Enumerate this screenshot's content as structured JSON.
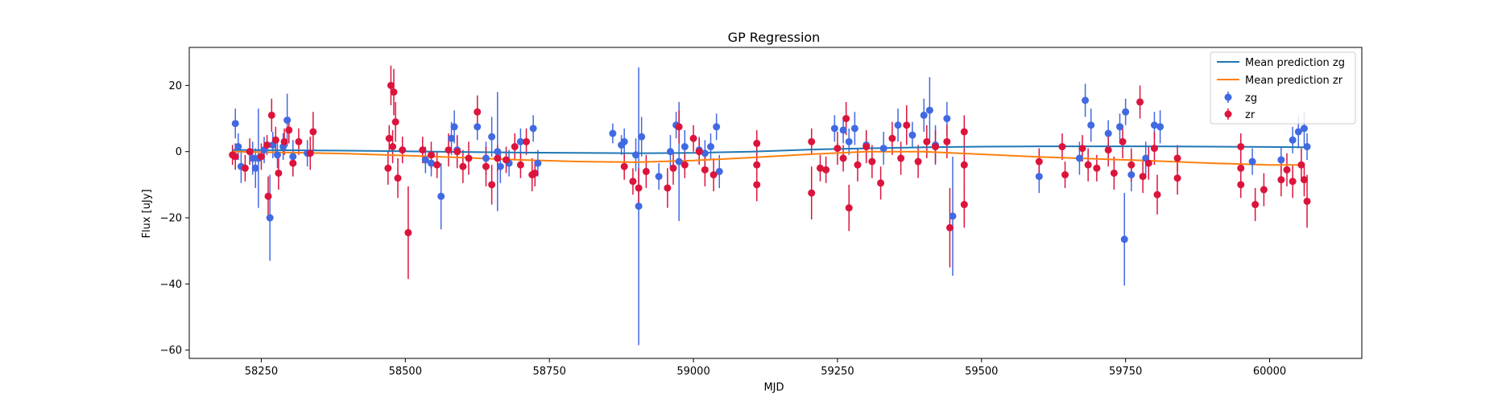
{
  "chart_data": {
    "type": "scatter",
    "title": "GP Regression",
    "xlabel": "MJD",
    "ylabel": "Flux [uJy]",
    "xlim": [
      58125,
      60160
    ],
    "ylim": [
      -62.5,
      31.5
    ],
    "xticks": [
      58250,
      58500,
      58750,
      59000,
      59250,
      59500,
      59750,
      60000
    ],
    "yticks": [
      -60,
      -40,
      -20,
      0,
      20
    ],
    "grid": false,
    "legend_position": "top-right",
    "lines": [
      {
        "name": "Mean prediction zg",
        "color": "#1f77b4",
        "x": [
          58200,
          58300,
          58400,
          58500,
          58600,
          58700,
          58800,
          58900,
          59000,
          59100,
          59200,
          59300,
          59400,
          59500,
          59600,
          59700,
          59800,
          59900,
          60000,
          60060
        ],
        "y": [
          0.5,
          0.4,
          0.3,
          0.1,
          -0.1,
          -0.3,
          -0.4,
          -0.5,
          -0.4,
          0.0,
          0.6,
          1.0,
          1.3,
          1.5,
          1.6,
          1.6,
          1.6,
          1.5,
          1.4,
          1.3
        ]
      },
      {
        "name": "Mean prediction zr",
        "color": "#ff7f0e",
        "x": [
          58200,
          58300,
          58400,
          58500,
          58600,
          58700,
          58800,
          58900,
          59000,
          59100,
          59200,
          59300,
          59400,
          59500,
          59600,
          59700,
          59800,
          59900,
          60000,
          60060
        ],
        "y": [
          0.0,
          -0.3,
          -0.6,
          -1.2,
          -1.8,
          -2.5,
          -3.0,
          -3.2,
          -2.7,
          -1.8,
          -0.8,
          0.0,
          0.0,
          -0.8,
          -1.6,
          -2.2,
          -2.8,
          -3.5,
          -4.0,
          -4.0
        ]
      }
    ],
    "series": [
      {
        "name": "zg",
        "color": "#4169e1",
        "points": [
          [
            58205,
            8.5,
            4.5
          ],
          [
            58210,
            1.5,
            4
          ],
          [
            58215,
            -4.5,
            5
          ],
          [
            58235,
            -2,
            5
          ],
          [
            58240,
            -5,
            6
          ],
          [
            58245,
            -2,
            15
          ],
          [
            58255,
            0.5,
            4
          ],
          [
            58265,
            -20,
            13
          ],
          [
            58270,
            2,
            4
          ],
          [
            58278,
            -1,
            4
          ],
          [
            58288,
            1.5,
            4
          ],
          [
            58295,
            9.5,
            8
          ],
          [
            58305,
            -1.5,
            5
          ],
          [
            58330,
            -0.5,
            4
          ],
          [
            58495,
            0.5,
            4
          ],
          [
            58535,
            -2.5,
            4
          ],
          [
            58545,
            -3.5,
            4
          ],
          [
            58562,
            -13.5,
            10
          ],
          [
            58580,
            4,
            5
          ],
          [
            58585,
            7.5,
            5
          ],
          [
            58590,
            0.5,
            4
          ],
          [
            58625,
            7.5,
            4
          ],
          [
            58640,
            -2,
            5
          ],
          [
            58650,
            4.5,
            6
          ],
          [
            58660,
            0,
            18
          ],
          [
            58665,
            -4.5,
            5
          ],
          [
            58680,
            -3.5,
            4
          ],
          [
            58700,
            3,
            4
          ],
          [
            58722,
            7,
            4
          ],
          [
            58730,
            -3.5,
            4
          ],
          [
            58860,
            5.5,
            3
          ],
          [
            58875,
            2,
            3
          ],
          [
            58880,
            3,
            4
          ],
          [
            58900,
            -1,
            5
          ],
          [
            58905,
            -16.5,
            42
          ],
          [
            58910,
            4.5,
            6
          ],
          [
            58940,
            -7.5,
            4
          ],
          [
            58960,
            0,
            5
          ],
          [
            58970,
            8,
            4
          ],
          [
            58975,
            -3,
            18
          ],
          [
            58985,
            1.5,
            5
          ],
          [
            59010,
            0.5,
            4
          ],
          [
            59020,
            -0.5,
            4
          ],
          [
            59030,
            1.5,
            4
          ],
          [
            59040,
            7.5,
            4
          ],
          [
            59045,
            -6,
            5
          ],
          [
            59245,
            7,
            4
          ],
          [
            59260,
            6.5,
            4
          ],
          [
            59270,
            3,
            4
          ],
          [
            59280,
            7,
            5
          ],
          [
            59300,
            2,
            4
          ],
          [
            59330,
            1,
            5
          ],
          [
            59355,
            8,
            5
          ],
          [
            59380,
            5,
            4
          ],
          [
            59400,
            11,
            5
          ],
          [
            59410,
            12.5,
            10
          ],
          [
            59420,
            2,
            6
          ],
          [
            59440,
            10,
            5
          ],
          [
            59450,
            -19.5,
            18
          ],
          [
            59600,
            -7.5,
            5
          ],
          [
            59670,
            -2,
            5
          ],
          [
            59680,
            15.5,
            5
          ],
          [
            59690,
            8,
            5
          ],
          [
            59720,
            5.5,
            4
          ],
          [
            59740,
            7.5,
            4
          ],
          [
            59748,
            -26.5,
            14
          ],
          [
            59750,
            12,
            4
          ],
          [
            59760,
            -7,
            5
          ],
          [
            59785,
            -2,
            5
          ],
          [
            59800,
            8,
            4
          ],
          [
            59810,
            7.5,
            5
          ],
          [
            59970,
            -3,
            4
          ],
          [
            60020,
            -2.5,
            4
          ],
          [
            60040,
            3.5,
            4
          ],
          [
            60050,
            6,
            5
          ],
          [
            60060,
            7,
            5
          ],
          [
            60065,
            1.5,
            4
          ]
        ]
      },
      {
        "name": "zr",
        "color": "#dc143c",
        "points": [
          [
            58200,
            -1,
            3
          ],
          [
            58205,
            -1.5,
            4
          ],
          [
            58222,
            -5,
            4
          ],
          [
            58230,
            0,
            4
          ],
          [
            58250,
            -1.5,
            4
          ],
          [
            58260,
            2,
            3
          ],
          [
            58262,
            -13.5,
            6
          ],
          [
            58268,
            11,
            5
          ],
          [
            58275,
            3.5,
            4
          ],
          [
            58280,
            -6.5,
            5
          ],
          [
            58290,
            3,
            4
          ],
          [
            58298,
            6.5,
            4
          ],
          [
            58305,
            -3.5,
            4
          ],
          [
            58315,
            3,
            4
          ],
          [
            58335,
            -0.5,
            5
          ],
          [
            58340,
            6,
            6
          ],
          [
            58470,
            -5,
            5
          ],
          [
            58472,
            4,
            4
          ],
          [
            58475,
            20,
            6
          ],
          [
            58478,
            1.5,
            5
          ],
          [
            58480,
            18,
            7
          ],
          [
            58483,
            9,
            6
          ],
          [
            58487,
            -8,
            6
          ],
          [
            58495,
            0.5,
            4
          ],
          [
            58505,
            -24.5,
            14
          ],
          [
            58530,
            0.5,
            4
          ],
          [
            58545,
            -1,
            4
          ],
          [
            58555,
            -4,
            4
          ],
          [
            58575,
            0.5,
            5
          ],
          [
            58590,
            0,
            5
          ],
          [
            58600,
            -4.5,
            5
          ],
          [
            58610,
            -2,
            5
          ],
          [
            58625,
            12,
            5
          ],
          [
            58640,
            -4.5,
            6
          ],
          [
            58650,
            -10,
            6
          ],
          [
            58660,
            -2,
            4
          ],
          [
            58675,
            -2.5,
            4
          ],
          [
            58690,
            1.5,
            4
          ],
          [
            58700,
            -4,
            4
          ],
          [
            58710,
            3,
            4
          ],
          [
            58720,
            -7,
            5
          ],
          [
            58725,
            -6.5,
            4
          ],
          [
            58880,
            -4.5,
            4
          ],
          [
            58895,
            -9,
            4
          ],
          [
            58905,
            -11,
            6
          ],
          [
            58918,
            -6,
            5
          ],
          [
            58955,
            -11,
            6
          ],
          [
            58965,
            -5,
            5
          ],
          [
            58975,
            7.5,
            5
          ],
          [
            58985,
            -4,
            4
          ],
          [
            59000,
            4,
            4
          ],
          [
            59010,
            0,
            4
          ],
          [
            59020,
            -5.5,
            5
          ],
          [
            59035,
            -7,
            5
          ],
          [
            59110,
            2.5,
            4
          ],
          [
            59110,
            -4,
            4
          ],
          [
            59110,
            -10,
            5
          ],
          [
            59205,
            -12.5,
            8
          ],
          [
            59205,
            3,
            4
          ],
          [
            59220,
            -5,
            4
          ],
          [
            59230,
            -5.5,
            4
          ],
          [
            59250,
            1,
            5
          ],
          [
            59260,
            -2,
            4
          ],
          [
            59265,
            10,
            5
          ],
          [
            59270,
            -17,
            7
          ],
          [
            59285,
            -4,
            5
          ],
          [
            59300,
            1.5,
            5
          ],
          [
            59310,
            -3,
            5
          ],
          [
            59325,
            -9.5,
            5
          ],
          [
            59345,
            4,
            5
          ],
          [
            59360,
            -2,
            5
          ],
          [
            59370,
            8,
            6
          ],
          [
            59390,
            -3,
            5
          ],
          [
            59405,
            3,
            5
          ],
          [
            59420,
            1.5,
            5
          ],
          [
            59440,
            3,
            5
          ],
          [
            59445,
            -23,
            12
          ],
          [
            59470,
            6,
            5
          ],
          [
            59470,
            -4,
            5
          ],
          [
            59470,
            -16,
            7
          ],
          [
            59600,
            -3,
            4
          ],
          [
            59640,
            1.5,
            4
          ],
          [
            59645,
            -7,
            4
          ],
          [
            59675,
            1,
            4
          ],
          [
            59685,
            -4,
            5
          ],
          [
            59700,
            -5,
            4
          ],
          [
            59720,
            0.5,
            5
          ],
          [
            59730,
            -6.5,
            5
          ],
          [
            59745,
            3,
            5
          ],
          [
            59760,
            -4,
            5
          ],
          [
            59775,
            15,
            5
          ],
          [
            59780,
            -7.5,
            5
          ],
          [
            59790,
            -3.5,
            5
          ],
          [
            59800,
            1,
            5
          ],
          [
            59805,
            -13,
            6
          ],
          [
            59840,
            -2,
            4
          ],
          [
            59840,
            -8,
            5
          ],
          [
            59950,
            1.5,
            4
          ],
          [
            59950,
            -5,
            4
          ],
          [
            59950,
            -10,
            4
          ],
          [
            59975,
            -16,
            5
          ],
          [
            59990,
            -11.5,
            5
          ],
          [
            60020,
            -8.5,
            5
          ],
          [
            60030,
            -5.5,
            5
          ],
          [
            60040,
            -9,
            5
          ],
          [
            60055,
            -4,
            5
          ],
          [
            60060,
            -8.5,
            5
          ],
          [
            60065,
            -15,
            8
          ]
        ]
      }
    ]
  }
}
